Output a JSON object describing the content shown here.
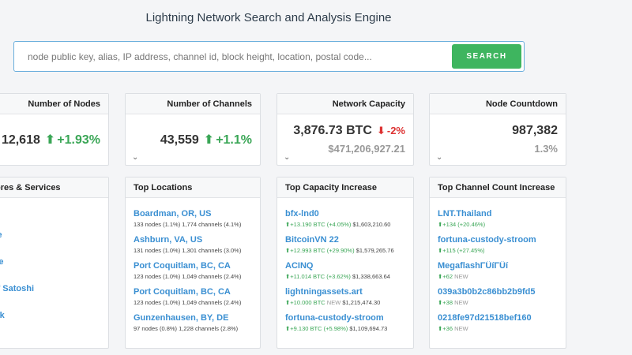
{
  "page_title": "Lightning Network Search and Analysis Engine",
  "search": {
    "placeholder": "node public key, alias, IP address, channel id, block height, location, postal code...",
    "button_label": "SEARCH"
  },
  "stats": [
    {
      "title": "Number of Nodes",
      "value": "12,618",
      "change_arrow": "⬆",
      "change": "+1.93%",
      "direction": "up"
    },
    {
      "title": "Number of Channels",
      "value": "43,559",
      "change_arrow": "⬆",
      "change": "+1.1%",
      "direction": "up"
    },
    {
      "title": "Network Capacity",
      "value": "3,876.73 BTC",
      "change_arrow": "⬇",
      "change": "-2%",
      "direction": "down",
      "sub": "$471,206,927.21"
    },
    {
      "title": "Node Countdown",
      "value": "987,382",
      "sub": "1.3%"
    }
  ],
  "stores": {
    "title": "Stores & Services",
    "items": [
      "fill",
      "n.me",
      "Node",
      "et of Satoshi",
      "ktank"
    ]
  },
  "top_locations": {
    "title": "Top Locations",
    "items": [
      {
        "name": "Boardman, OR, US",
        "detail": "133 nodes (1.1%) 1,774 channels (4.1%)"
      },
      {
        "name": "Ashburn, VA, US",
        "detail": "131 nodes (1.0%) 1,301 channels (3.0%)"
      },
      {
        "name": "Port Coquitlam, BC, CA",
        "detail": "123 nodes (1.0%) 1,049 channels (2.4%)"
      },
      {
        "name": "Port Coquitlam, BC, CA",
        "detail": "123 nodes (1.0%) 1,049 channels (2.4%)"
      },
      {
        "name": "Gunzenhausen, BY, DE",
        "detail": "97 nodes (0.8%) 1,228 channels (2.8%)"
      }
    ]
  },
  "top_capacity": {
    "title": "Top Capacity Increase",
    "items": [
      {
        "name": "bfx-lnd0",
        "change": "⬆+13.190 BTC (+4.05%)",
        "rest": "$1,603,210.60"
      },
      {
        "name": "BitcoinVN 22",
        "change": "⬆+12.993 BTC (+29.90%)",
        "rest": "$1,579,265.76"
      },
      {
        "name": "ACINQ",
        "change": "⬆+11.014 BTC (+3.62%)",
        "rest": "$1,338,663.64"
      },
      {
        "name": "lightningassets.art",
        "change": "⬆+10.000 BTC",
        "tag": "NEW",
        "rest": "$1,215,474.30"
      },
      {
        "name": "fortuna-custody-stroom",
        "change": "⬆+9.130 BTC (+5.98%)",
        "rest": "$1,109,694.73"
      }
    ]
  },
  "top_channel_count": {
    "title": "Top Channel Count Increase",
    "items": [
      {
        "name": "LNT.Thailand",
        "change": "⬆+134 (+20.46%)"
      },
      {
        "name": "fortuna-custody-stroom",
        "change": "⬆+115 (+27.45%)"
      },
      {
        "name": "MegaflashΓÜíΓÜí",
        "change": "⬆+62",
        "tag": "NEW"
      },
      {
        "name": "039a3b0b2c86bb2b9fd5",
        "change": "⬆+38",
        "tag": "NEW"
      },
      {
        "name": "0218fe97d21518bef160",
        "change": "⬆+36",
        "tag": "NEW"
      }
    ]
  },
  "colors": {
    "accent": "#3a8fd2",
    "up": "#3aa656",
    "down": "#dd3333",
    "button": "#3eb55f"
  }
}
